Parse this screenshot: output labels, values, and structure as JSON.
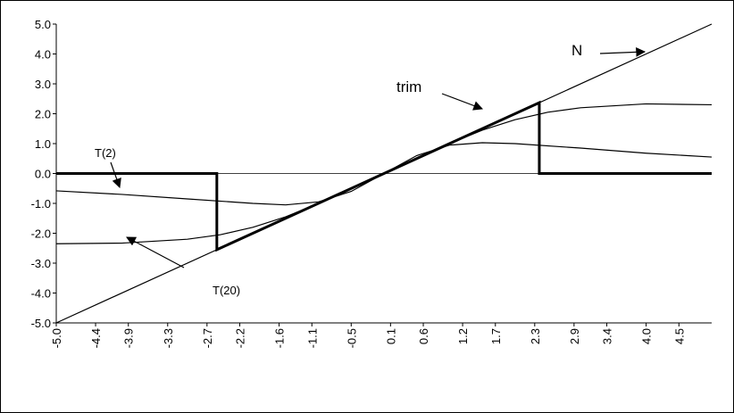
{
  "chart_data": {
    "type": "line",
    "xlim": [
      -5,
      5
    ],
    "ylim": [
      -5,
      5
    ],
    "xticks": [
      {
        "value": -5,
        "label": "-5.0"
      },
      -4.4,
      -3.9,
      -3.3,
      -2.7,
      -2.2,
      -1.6,
      -1.1,
      -0.5,
      0.1,
      0.6,
      1.2,
      1.7,
      2.3,
      2.9,
      3.4,
      {
        "value": 4,
        "label": "4.0"
      },
      4.5
    ],
    "yticks": [
      {
        "value": -5,
        "label": "-5.0"
      },
      {
        "value": -4,
        "label": "-4.0"
      },
      {
        "value": -3,
        "label": "-3.0"
      },
      {
        "value": -2,
        "label": "-2.0"
      },
      {
        "value": -1,
        "label": "-1.0"
      },
      {
        "value": 0,
        "label": "0.0"
      },
      {
        "value": 1,
        "label": "1.0"
      },
      {
        "value": 2,
        "label": "2.0"
      },
      {
        "value": 3,
        "label": "3.0"
      },
      {
        "value": 4,
        "label": "4.0"
      },
      {
        "value": 5,
        "label": "5.0"
      }
    ],
    "annotations": [
      "N",
      "trim",
      "T(2)",
      "T(20)"
    ],
    "series": [
      {
        "color": "#000000",
        "width": 1.2,
        "x": [
          -5,
          5
        ],
        "values": [
          -5,
          5
        ]
      },
      {
        "color": "#000000",
        "width": 3,
        "x": [
          -5,
          -2.55,
          -2.55,
          2.37,
          2.37,
          5
        ],
        "values": [
          0,
          0,
          -2.55,
          2.37,
          0,
          0
        ]
      },
      {
        "color": "#000000",
        "width": 1.2,
        "x": [
          -5,
          -4,
          -3,
          -2,
          -1.5,
          -1,
          -0.5,
          0,
          0.5,
          1,
          1.5,
          2,
          3,
          4,
          5
        ],
        "values": [
          -0.58,
          -0.7,
          -0.85,
          -1.0,
          -1.05,
          -0.95,
          -0.6,
          0,
          0.6,
          0.95,
          1.03,
          1.0,
          0.85,
          0.68,
          0.55
        ]
      },
      {
        "color": "#000000",
        "width": 1.2,
        "x": [
          -5,
          -4,
          -3,
          -2.5,
          -2,
          -1.5,
          -1,
          -0.5,
          0,
          0.5,
          1,
          1.5,
          2,
          2.5,
          3,
          4,
          5
        ],
        "values": [
          -2.35,
          -2.33,
          -2.2,
          -2.05,
          -1.8,
          -1.45,
          -1.0,
          -0.5,
          0,
          0.5,
          1.0,
          1.45,
          1.8,
          2.05,
          2.2,
          2.33,
          2.3
        ]
      }
    ]
  }
}
